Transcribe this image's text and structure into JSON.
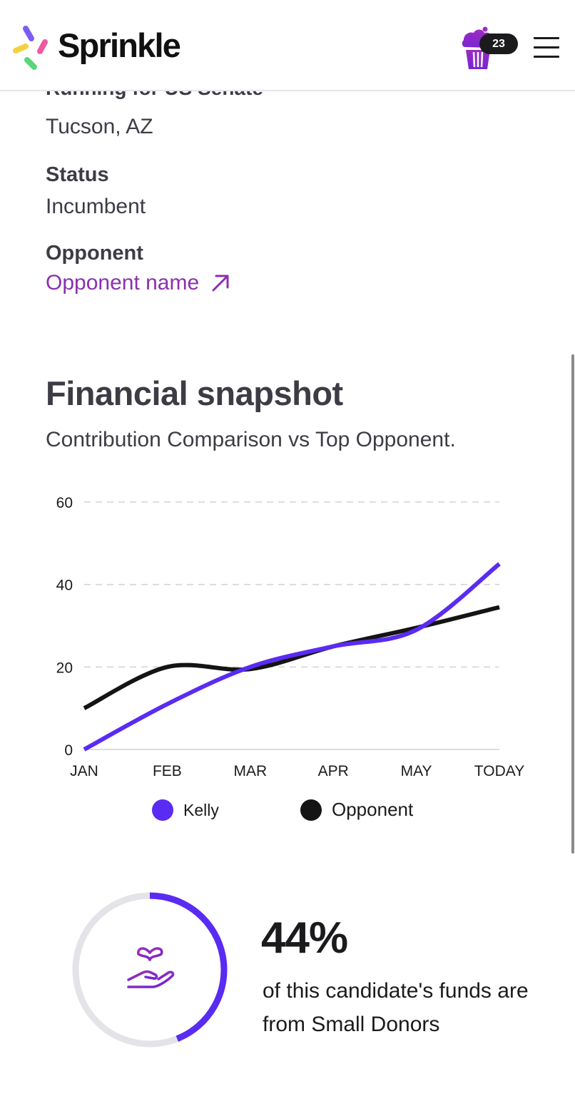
{
  "header": {
    "brand": "Sprinkle",
    "cart_count": "23",
    "logo_colors": [
      "#7b5cf5",
      "#f4d03f",
      "#ee5aa0",
      "#5bd47a"
    ],
    "cart_icon": "cupcake-icon",
    "menu_icon": "hamburger-menu-icon"
  },
  "profile": {
    "running_for": "Running for US Senate",
    "location": "Tucson, AZ",
    "status_label": "Status",
    "status_value": "Incumbent",
    "opponent_label": "Opponent",
    "opponent_link": "Opponent name",
    "link_icon": "arrow-up-right-icon"
  },
  "financial": {
    "title": "Financial snapshot",
    "subtitle": "Contribution Comparison vs Top Opponent."
  },
  "chart_data": {
    "type": "line",
    "categories": [
      "JAN",
      "FEB",
      "MAR",
      "APR",
      "MAY",
      "TODAY"
    ],
    "yticks": [
      "0",
      "20",
      "40",
      "60"
    ],
    "ylim": [
      0,
      60
    ],
    "grid": true,
    "legend_position": "bottom",
    "series": [
      {
        "name": "Kelly",
        "color": "#5a2bf2",
        "values": [
          0,
          11,
          20,
          25,
          29,
          45
        ]
      },
      {
        "name": "Opponent",
        "color": "#141414",
        "values": [
          10,
          20,
          19.5,
          25,
          29.5,
          34.5
        ]
      }
    ]
  },
  "donors": {
    "percent_value": 44,
    "percent_text": "44%",
    "description": "of this candidate's funds are from Small Donors",
    "icon": "plant-hand-icon",
    "ring_color": "#5a2bf2"
  }
}
